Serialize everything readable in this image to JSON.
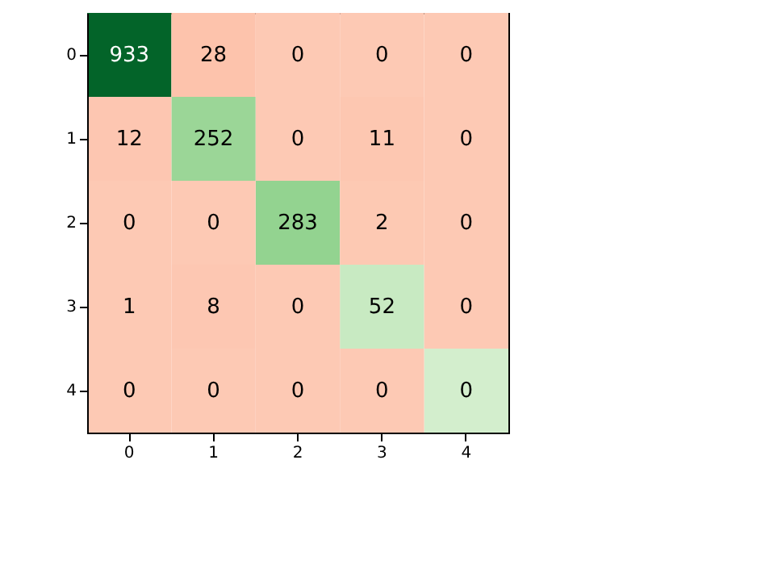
{
  "chart_data": {
    "type": "heatmap",
    "categories": [
      "0",
      "1",
      "2",
      "3",
      "4"
    ],
    "y_categories": [
      "0",
      "1",
      "2",
      "3",
      "4"
    ],
    "cells": [
      [
        933,
        28,
        0,
        0,
        0
      ],
      [
        12,
        252,
        0,
        11,
        0
      ],
      [
        0,
        0,
        283,
        2,
        0
      ],
      [
        1,
        8,
        0,
        52,
        0
      ],
      [
        0,
        0,
        0,
        0,
        0
      ]
    ],
    "data_labels": true
  }
}
